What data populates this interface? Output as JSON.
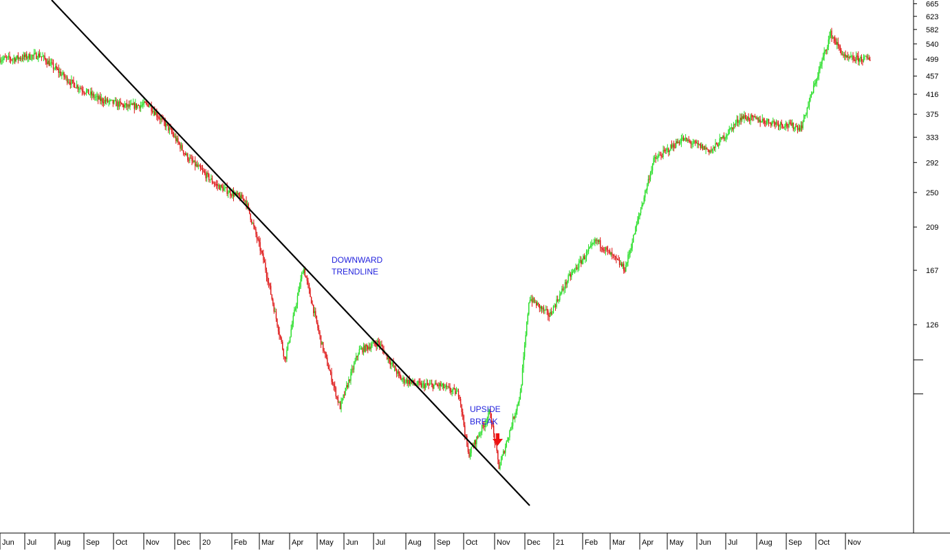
{
  "chart_data": {
    "type": "candlestick",
    "y_scale": "log",
    "ylim": [
      60,
      700
    ],
    "y_ticks": [
      665,
      623,
      582,
      540,
      499,
      457,
      416,
      375,
      333,
      292,
      250,
      209,
      167,
      126
    ],
    "x_tick_labels": [
      "Jun",
      "Jul",
      "Aug",
      "Sep",
      "Oct",
      "Nov",
      "Dec",
      "20",
      "Feb",
      "Mar",
      "Apr",
      "May",
      "Jun",
      "Jul",
      "Aug",
      "Sep",
      "Oct",
      "Nov",
      "Dec",
      "21",
      "Feb",
      "Mar",
      "Apr",
      "May",
      "Jun",
      "Jul",
      "Aug",
      "Sep",
      "Oct",
      "Nov"
    ],
    "price_path": [
      [
        "Jun",
        500
      ],
      [
        "Jul",
        510
      ],
      [
        "Aug",
        445
      ],
      [
        "Sep",
        405
      ],
      [
        "Oct",
        390
      ],
      [
        "Nov",
        395
      ],
      [
        "Nov",
        345
      ],
      [
        "Dec",
        300
      ],
      [
        "20",
        260
      ],
      [
        "Feb",
        240
      ],
      [
        "Mar",
        175
      ],
      [
        "Mar",
        105
      ],
      [
        "Apr",
        170
      ],
      [
        "May",
        115
      ],
      [
        "May",
        82
      ],
      [
        "Jun",
        110
      ],
      [
        "Jul",
        115
      ],
      [
        "Jul",
        95
      ],
      [
        "Aug",
        92
      ],
      [
        "Sep",
        92
      ],
      [
        "Sep",
        88
      ],
      [
        "Oct",
        64
      ],
      [
        "Oct",
        80
      ],
      [
        "Nov",
        60
      ],
      [
        "Nov",
        88
      ],
      [
        "Dec",
        145
      ],
      [
        "Dec",
        132
      ],
      [
        "21",
        160
      ],
      [
        "Feb",
        195
      ],
      [
        "Mar",
        168
      ],
      [
        "Apr",
        295
      ],
      [
        "May",
        330
      ],
      [
        "Jun",
        310
      ],
      [
        "Jul",
        370
      ],
      [
        "Aug",
        360
      ],
      [
        "Sep",
        350
      ],
      [
        "Oct",
        570
      ],
      [
        "Nov",
        500
      ]
    ],
    "trendline": {
      "from": [
        405,
        60
      ],
      "to": [
        755,
        900
      ]
    },
    "colors": {
      "up": "#22dd22",
      "down": "#dd1111",
      "trendline": "#000000",
      "annotation_text": "#2222dd",
      "arrow": "#ee1111"
    }
  },
  "annotations": {
    "downward_trendline": [
      "DOWNWARD",
      "TRENDLINE"
    ],
    "upside_break": [
      "UPSIDE",
      "BREAK"
    ]
  }
}
